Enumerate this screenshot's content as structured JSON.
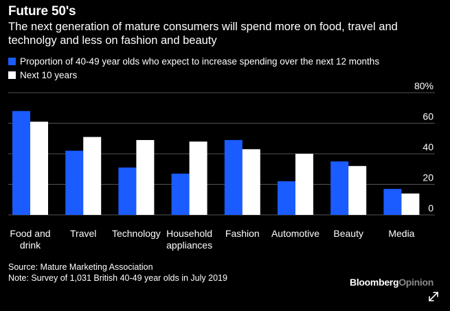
{
  "title": "Future 50's",
  "subtitle": "The next generation of mature consumers will spend more on food, travel and technolgy and less on fashion and beauty",
  "legend": {
    "series1": "Proportion of 40-49 year olds who expect to increase spending over the next 12 months",
    "series2": "Next 10 years"
  },
  "colors": {
    "series1": "#1a5cff",
    "series2": "#ffffff",
    "background": "#000000",
    "gridline": "#555555"
  },
  "footer": {
    "source": "Source: Mature Marketing Association",
    "note": "Note: Survey of 1,031 British 40-49 year olds in July 2019",
    "brand_main": "Bloomberg",
    "brand_accent": "Opinion"
  },
  "icons": {
    "expand": "expand-arrows-icon"
  },
  "chart_data": {
    "type": "bar",
    "categories": [
      [
        "Food and",
        "drink"
      ],
      [
        "Travel"
      ],
      [
        "Technology"
      ],
      [
        "Household",
        "appliances"
      ],
      [
        "Fashion"
      ],
      [
        "Automotive"
      ],
      [
        "Beauty"
      ],
      [
        "Media"
      ]
    ],
    "series": [
      {
        "name": "Proportion of 40-49 year olds who expect to increase spending over the next 12 months",
        "values": [
          68,
          42,
          31,
          27,
          49,
          22,
          35,
          17
        ]
      },
      {
        "name": "Next 10 years",
        "values": [
          61,
          51,
          49,
          48,
          43,
          40,
          32,
          14
        ]
      }
    ],
    "ylim": [
      0,
      80
    ],
    "yticks": [
      0,
      20,
      40,
      60,
      80
    ],
    "ytick_labels": [
      "0",
      "20",
      "40",
      "60",
      "80%"
    ],
    "xlabel": "",
    "ylabel": ""
  }
}
